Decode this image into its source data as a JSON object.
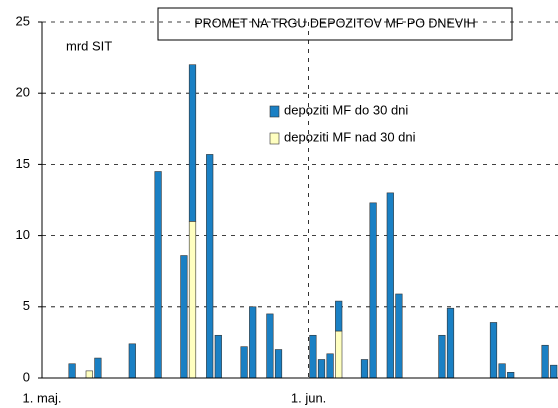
{
  "chart_data": {
    "type": "bar",
    "stacked": true,
    "title": "PROMET NA TRGU DEPOZITOV MF PO DNEVIH",
    "y_label": "mrd SIT",
    "categories": [
      "1. maj.",
      null,
      null,
      null,
      null,
      null,
      null,
      null,
      null,
      null,
      null,
      null,
      null,
      null,
      null,
      null,
      null,
      null,
      null,
      null,
      null,
      null,
      null,
      null,
      null,
      null,
      null,
      null,
      null,
      null,
      null,
      "1. jun.",
      null,
      null,
      null,
      null,
      null,
      null,
      null,
      null,
      null,
      null,
      null,
      null,
      null,
      null,
      null,
      null,
      null,
      null,
      null,
      null,
      null,
      null,
      null,
      null,
      null,
      null,
      null,
      null
    ],
    "series": [
      {
        "name": "depoziti MF do 30 dni",
        "color": "#1a80c4",
        "values": [
          null,
          null,
          null,
          1.0,
          null,
          null,
          1.4,
          null,
          null,
          null,
          2.4,
          null,
          null,
          14.5,
          null,
          null,
          8.6,
          11,
          null,
          15.7,
          3.0,
          null,
          null,
          2.2,
          5.0,
          null,
          4.5,
          2.0,
          null,
          null,
          null,
          3.0,
          1.3,
          1.7,
          2.1,
          null,
          null,
          1.3,
          12.3,
          null,
          13.0,
          5.9,
          null,
          null,
          null,
          null,
          3.0,
          4.9,
          null,
          null,
          null,
          null,
          3.9,
          1.0,
          0.4,
          null,
          null,
          null,
          2.3,
          0.9
        ]
      },
      {
        "name": "depoziti MF nad 30 dni",
        "color": "#ffffc0",
        "values": [
          null,
          null,
          null,
          null,
          null,
          0.5,
          null,
          null,
          null,
          null,
          null,
          null,
          null,
          null,
          null,
          null,
          null,
          11,
          null,
          null,
          null,
          null,
          null,
          null,
          null,
          null,
          null,
          null,
          null,
          null,
          null,
          null,
          null,
          null,
          3.3,
          null,
          null,
          null,
          null,
          null,
          null,
          null,
          null,
          null,
          null,
          null,
          null,
          null,
          null,
          null,
          null,
          null,
          null,
          null,
          null,
          null,
          null,
          null,
          null,
          null
        ]
      }
    ],
    "ylim": [
      0,
      25
    ],
    "yticks": [
      0,
      5,
      10,
      15,
      20,
      25
    ],
    "grid": true
  }
}
